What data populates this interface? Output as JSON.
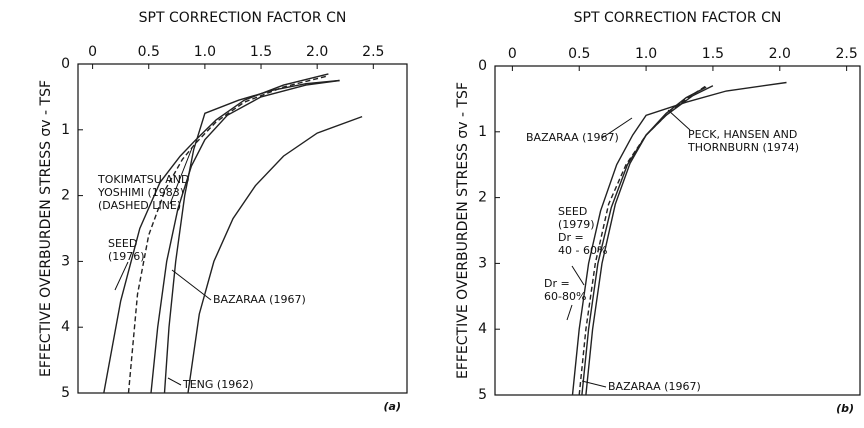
{
  "chart_data": [
    {
      "type": "line",
      "x_label": "SPT CORRECTION FACTOR  CN",
      "y_label": "EFFECTIVE OVERBURDEN STRESS  σv - TSF",
      "panel_label": "(a)",
      "xlim": [
        -0.13,
        2.8
      ],
      "ylim": [
        0,
        5
      ],
      "xticks": [
        0,
        0.5,
        {
          "value": 1,
          "label": "1.0"
        },
        1.5,
        {
          "value": 2,
          "label": "2.0"
        },
        2.5
      ],
      "yticks": [
        0,
        1,
        2,
        3,
        4,
        5
      ],
      "series": [
        {
          "label": [
            "SEED",
            "(1976)"
          ],
          "color": "#222",
          "dashed": false,
          "x": [
            0.1,
            0.25,
            0.42,
            0.6,
            0.78,
            0.92,
            1.1,
            1.35,
            1.7,
            2.1
          ],
          "values": [
            5,
            3.6,
            2.5,
            1.8,
            1.4,
            1.15,
            0.85,
            0.55,
            0.32,
            0.15
          ]
        },
        {
          "label": [
            "TOKIMATSU AND",
            "YOSHIMI (1983)",
            "(DASHED LINE)"
          ],
          "color": "#222",
          "dashed": true,
          "x": [
            0.32,
            0.4,
            0.5,
            0.65,
            0.8,
            0.92,
            1.1,
            1.35,
            1.7,
            2.1
          ],
          "values": [
            5,
            3.5,
            2.6,
            1.9,
            1.45,
            1.2,
            0.88,
            0.58,
            0.35,
            0.18
          ]
        },
        {
          "color": "#222",
          "dashed": false,
          "x": [
            0.52,
            0.58,
            0.66,
            0.76,
            0.88,
            1.0,
            1.2,
            1.5,
            1.9,
            2.2
          ],
          "values": [
            5,
            4,
            3,
            2.2,
            1.55,
            1.15,
            0.78,
            0.5,
            0.32,
            0.25
          ]
        },
        {
          "label": [
            "BAZARAA (1967)"
          ],
          "color": "#222",
          "dashed": false,
          "x": [
            0.64,
            0.68,
            0.74,
            0.82,
            0.9,
            1.0,
            1.3,
            1.6,
            1.9,
            2.2
          ],
          "values": [
            5,
            4,
            3,
            2,
            1.3,
            0.75,
            0.55,
            0.4,
            0.3,
            0.25
          ]
        },
        {
          "label": [
            "TENG (1962)"
          ],
          "color": "#222",
          "dashed": false,
          "x": [
            0.85,
            0.95,
            1.08,
            1.25,
            1.45,
            1.7,
            2.0,
            2.4
          ],
          "values": [
            5,
            3.8,
            3.0,
            2.35,
            1.85,
            1.4,
            1.05,
            0.8
          ]
        }
      ]
    },
    {
      "type": "line",
      "x_label": "SPT CORRECTION FACTOR  CN",
      "y_label": "EFFECTIVE OVERBURDEN STRESS  σv - TSF",
      "panel_label": "(b)",
      "xlim": [
        -0.13,
        2.6
      ],
      "ylim": [
        0,
        5
      ],
      "xticks": [
        0,
        0.5,
        {
          "value": 1,
          "label": "1.0"
        },
        1.5,
        {
          "value": 2,
          "label": "2.0"
        },
        2.5
      ],
      "yticks": [
        0,
        1,
        2,
        3,
        4,
        5
      ],
      "series": [
        {
          "label": [
            "BAZARAA (1967)"
          ],
          "color": "#222",
          "dashed": false,
          "x": [
            0.45,
            0.5,
            0.57,
            0.66,
            0.78,
            0.9,
            1.0,
            1.3,
            1.6,
            2.05
          ],
          "values": [
            5,
            4,
            3,
            2.2,
            1.5,
            1.05,
            0.75,
            0.55,
            0.38,
            0.25
          ]
        },
        {
          "label": [
            "PECK, HANSEN AND",
            "THORNBURN (1974)"
          ],
          "color": "#222",
          "dashed": true,
          "x": [
            0.5,
            0.55,
            0.62,
            0.72,
            0.85,
            1.0,
            1.15,
            1.3,
            1.45
          ],
          "values": [
            5,
            4,
            3,
            2.1,
            1.5,
            1.05,
            0.75,
            0.5,
            0.3
          ]
        },
        {
          "label": [
            "SEED",
            "(1979)",
            "Dr =",
            "40 - 60%"
          ],
          "color": "#222",
          "dashed": false,
          "x": [
            0.52,
            0.57,
            0.64,
            0.74,
            0.86,
            1.0,
            1.15,
            1.35,
            1.5
          ],
          "values": [
            5,
            4,
            3,
            2.15,
            1.5,
            1.05,
            0.75,
            0.45,
            0.3
          ]
        },
        {
          "label": [
            "Dr =",
            "60-80%"
          ],
          "color": "#222",
          "dashed": false,
          "x": [
            0.55,
            0.6,
            0.67,
            0.77,
            0.88,
            1.0,
            1.15,
            1.3,
            1.45
          ],
          "values": [
            5,
            4,
            3,
            2.1,
            1.48,
            1.05,
            0.72,
            0.48,
            0.32
          ]
        }
      ]
    }
  ]
}
